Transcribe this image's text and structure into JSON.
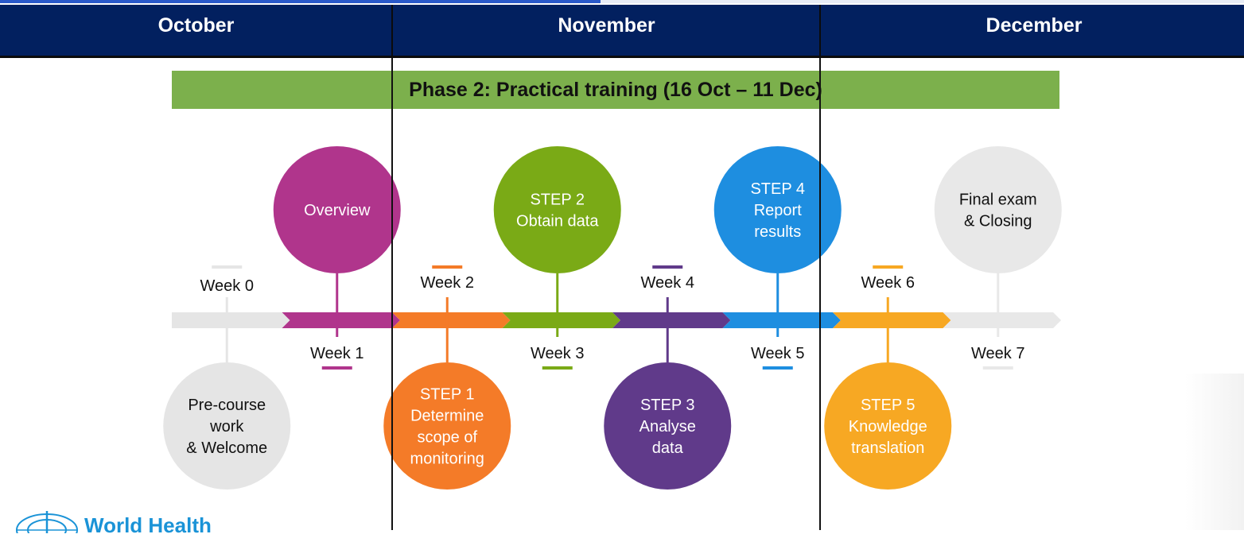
{
  "months": [
    "October",
    "November",
    "December"
  ],
  "phase_title": "Phase 2: Practical training (16 Oct – 11 Dec)",
  "logo_text": "World Health",
  "weeks": [
    {
      "label": "Week 0",
      "color": "#e5e5e5",
      "node": {
        "lines": [
          "Pre-course",
          "work",
          "& Welcome"
        ],
        "color": "#e5e5e5",
        "text_color": "#111111"
      }
    },
    {
      "label": "Week 1",
      "color": "#b0358c",
      "node": {
        "lines": [
          "Overview"
        ],
        "color": "#b0358c",
        "text_color": "#ffffff"
      }
    },
    {
      "label": "Week 2",
      "color": "#f47b28",
      "node": {
        "lines": [
          "STEP 1",
          "Determine",
          "scope of",
          "monitoring"
        ],
        "color": "#f47b28",
        "text_color": "#ffffff"
      }
    },
    {
      "label": "Week 3",
      "color": "#7aaa16",
      "node": {
        "lines": [
          "STEP 2",
          "Obtain data"
        ],
        "color": "#7aaa16",
        "text_color": "#ffffff"
      }
    },
    {
      "label": "Week 4",
      "color": "#603a8a",
      "node": {
        "lines": [
          "STEP 3",
          "Analyse",
          "data"
        ],
        "color": "#603a8a",
        "text_color": "#ffffff"
      }
    },
    {
      "label": "Week 5",
      "color": "#1e8ee0",
      "node": {
        "lines": [
          "STEP 4",
          "Report",
          "results"
        ],
        "color": "#1e8ee0",
        "text_color": "#ffffff"
      }
    },
    {
      "label": "Week 6",
      "color": "#f7a823",
      "node": {
        "lines": [
          "STEP 5",
          "Knowledge",
          "translation"
        ],
        "color": "#f7a823",
        "text_color": "#ffffff"
      }
    },
    {
      "label": "Week 7",
      "color": "#e8e8e8",
      "node": {
        "lines": [
          "Final exam",
          "& Closing"
        ],
        "color": "#e8e8e8",
        "text_color": "#111111"
      }
    }
  ]
}
